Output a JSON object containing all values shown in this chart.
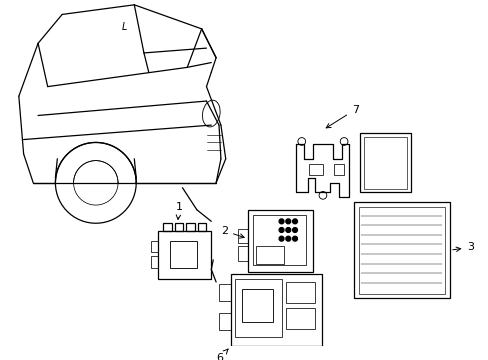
{
  "background_color": "#ffffff",
  "line_color": "#000000",
  "fig_width": 4.89,
  "fig_height": 3.6,
  "dpi": 100,
  "label_fontsize": 8
}
